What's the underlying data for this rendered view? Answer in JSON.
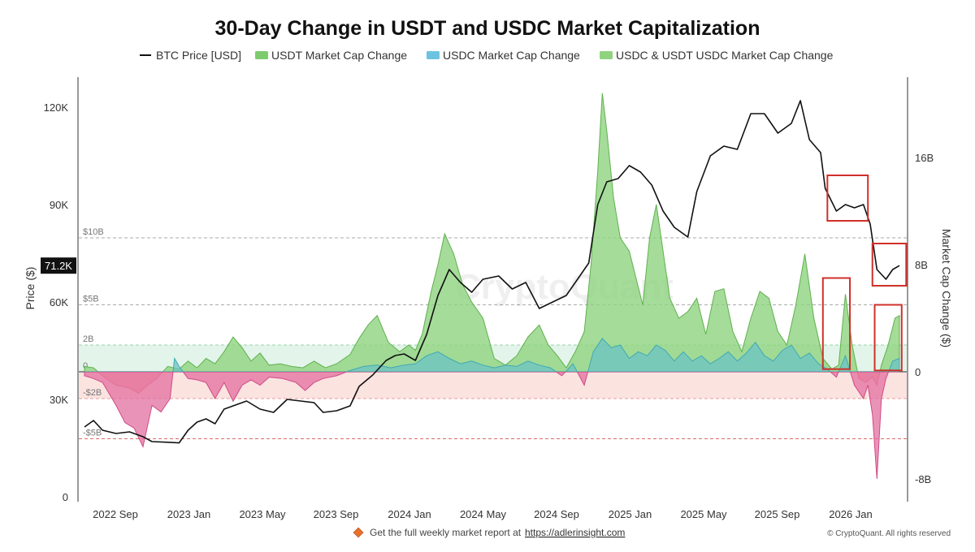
{
  "chart_data": {
    "type": "area",
    "title": "30-Day Change in USDT and USDC Market Capitalization",
    "legend": [
      {
        "label": "BTC Price [USD]",
        "color": "#111111",
        "kind": "line"
      },
      {
        "label": "USDT Market Cap Change",
        "color": "#7ecb6e",
        "kind": "area"
      },
      {
        "label": "USDC Market Cap Change",
        "color": "#6cc3e0",
        "kind": "area"
      },
      {
        "label": "USDC & USDT USDC Market Cap Change",
        "color": "#8fd37f",
        "kind": "area"
      }
    ],
    "x_ticks": [
      "2022 Sep",
      "2023 Jan",
      "2023 May",
      "2023 Sep",
      "2024 Jan",
      "2024 May",
      "2024 Sep",
      "2025 Jan",
      "2025 May",
      "2025 Sep",
      "2026 Jan"
    ],
    "x_range": [
      2022.58,
      2026.2
    ],
    "left_axis": {
      "label": "Price ($)",
      "range": [
        0,
        130000
      ],
      "ticks": [
        "0",
        "30K",
        "60K",
        "90K",
        "120K"
      ],
      "tick_values": [
        0,
        30000,
        60000,
        90000,
        120000
      ]
    },
    "right_axis": {
      "label": "Market Cap Change ($)",
      "range": [
        -9.5,
        21.5
      ],
      "ticks": [
        "-8B",
        "0",
        "8B",
        "16B"
      ],
      "tick_values": [
        -8,
        0,
        8,
        16
      ]
    },
    "current_price_label": "71.2K",
    "current_price_value": 71200,
    "reference_lines": [
      {
        "label": "$10B",
        "value": 10,
        "color": "#aaaaaa"
      },
      {
        "label": "$5B",
        "value": 5,
        "color": "#aaaaaa"
      },
      {
        "label": "2B",
        "value": 2,
        "color": "#9ad3a8"
      },
      {
        "label": "0",
        "value": 0,
        "color": "#555555"
      },
      {
        "label": "-$2B",
        "value": -2,
        "color": "#e89b9b"
      },
      {
        "label": "-$5B",
        "value": -5,
        "color": "#d96a6a"
      }
    ],
    "bands": [
      {
        "from": 0,
        "to": 2,
        "color": "#d9f2e3"
      },
      {
        "from": -2,
        "to": 0,
        "color": "#f9d9d6"
      }
    ],
    "btc_price": [
      [
        2022.58,
        21500
      ],
      [
        2022.62,
        23500
      ],
      [
        2022.66,
        20500
      ],
      [
        2022.72,
        19500
      ],
      [
        2022.78,
        20000
      ],
      [
        2022.84,
        18500
      ],
      [
        2022.88,
        17000
      ],
      [
        2022.95,
        16800
      ],
      [
        2023.0,
        16600
      ],
      [
        2023.04,
        20500
      ],
      [
        2023.08,
        23000
      ],
      [
        2023.12,
        24000
      ],
      [
        2023.16,
        22500
      ],
      [
        2023.2,
        27000
      ],
      [
        2023.26,
        28500
      ],
      [
        2023.3,
        29500
      ],
      [
        2023.36,
        27000
      ],
      [
        2023.42,
        26000
      ],
      [
        2023.48,
        30000
      ],
      [
        2023.54,
        29500
      ],
      [
        2023.6,
        29000
      ],
      [
        2023.64,
        26000
      ],
      [
        2023.7,
        26500
      ],
      [
        2023.76,
        28000
      ],
      [
        2023.8,
        34000
      ],
      [
        2023.86,
        37500
      ],
      [
        2023.92,
        42000
      ],
      [
        2023.96,
        43500
      ],
      [
        2024.0,
        44000
      ],
      [
        2024.05,
        42000
      ],
      [
        2024.1,
        50000
      ],
      [
        2024.15,
        62000
      ],
      [
        2024.2,
        70000
      ],
      [
        2024.25,
        66000
      ],
      [
        2024.3,
        63000
      ],
      [
        2024.35,
        67000
      ],
      [
        2024.42,
        68000
      ],
      [
        2024.48,
        64000
      ],
      [
        2024.54,
        66000
      ],
      [
        2024.6,
        58000
      ],
      [
        2024.66,
        60000
      ],
      [
        2024.72,
        62000
      ],
      [
        2024.78,
        68000
      ],
      [
        2024.82,
        72000
      ],
      [
        2024.86,
        90000
      ],
      [
        2024.9,
        97000
      ],
      [
        2024.95,
        98000
      ],
      [
        2025.0,
        102000
      ],
      [
        2025.05,
        100000
      ],
      [
        2025.1,
        96000
      ],
      [
        2025.15,
        88000
      ],
      [
        2025.2,
        83000
      ],
      [
        2025.26,
        80000
      ],
      [
        2025.3,
        94000
      ],
      [
        2025.36,
        105000
      ],
      [
        2025.42,
        108000
      ],
      [
        2025.48,
        107000
      ],
      [
        2025.54,
        118000
      ],
      [
        2025.6,
        118000
      ],
      [
        2025.66,
        112000
      ],
      [
        2025.72,
        115000
      ],
      [
        2025.76,
        122000
      ],
      [
        2025.8,
        110000
      ],
      [
        2025.85,
        106000
      ],
      [
        2025.87,
        95000
      ],
      [
        2025.92,
        88000
      ],
      [
        2025.96,
        90000
      ],
      [
        2026.0,
        89000
      ],
      [
        2026.04,
        90000
      ],
      [
        2026.07,
        84000
      ],
      [
        2026.1,
        70000
      ],
      [
        2026.14,
        67000
      ],
      [
        2026.17,
        70000
      ],
      [
        2026.2,
        71200
      ]
    ],
    "usdt_change": [
      [
        2022.58,
        0.4
      ],
      [
        2022.62,
        0.3
      ],
      [
        2022.66,
        -0.3
      ],
      [
        2022.72,
        -1.0
      ],
      [
        2022.78,
        -1.2
      ],
      [
        2022.82,
        -1.6
      ],
      [
        2022.86,
        -1.0
      ],
      [
        2022.9,
        -0.5
      ],
      [
        2022.95,
        0.4
      ],
      [
        2023.0,
        0.2
      ],
      [
        2023.04,
        0.8
      ],
      [
        2023.08,
        0.3
      ],
      [
        2023.12,
        1.0
      ],
      [
        2023.16,
        0.6
      ],
      [
        2023.2,
        1.5
      ],
      [
        2023.24,
        2.6
      ],
      [
        2023.28,
        1.8
      ],
      [
        2023.32,
        0.8
      ],
      [
        2023.36,
        1.4
      ],
      [
        2023.4,
        0.5
      ],
      [
        2023.45,
        0.6
      ],
      [
        2023.5,
        0.4
      ],
      [
        2023.55,
        0.3
      ],
      [
        2023.6,
        0.8
      ],
      [
        2023.65,
        0.3
      ],
      [
        2023.7,
        0.6
      ],
      [
        2023.76,
        1.3
      ],
      [
        2023.8,
        2.5
      ],
      [
        2023.84,
        3.5
      ],
      [
        2023.88,
        4.2
      ],
      [
        2023.93,
        2.2
      ],
      [
        2023.98,
        1.5
      ],
      [
        2024.02,
        2.0
      ],
      [
        2024.05,
        1.6
      ],
      [
        2024.08,
        2.8
      ],
      [
        2024.12,
        6.0
      ],
      [
        2024.15,
        8.0
      ],
      [
        2024.18,
        10.3
      ],
      [
        2024.22,
        8.8
      ],
      [
        2024.26,
        6.5
      ],
      [
        2024.3,
        5.2
      ],
      [
        2024.35,
        4.0
      ],
      [
        2024.4,
        1.0
      ],
      [
        2024.45,
        0.5
      ],
      [
        2024.5,
        1.2
      ],
      [
        2024.55,
        2.6
      ],
      [
        2024.6,
        3.5
      ],
      [
        2024.64,
        2.0
      ],
      [
        2024.68,
        1.2
      ],
      [
        2024.72,
        0.3
      ],
      [
        2024.76,
        1.5
      ],
      [
        2024.8,
        3.0
      ],
      [
        2024.83,
        8.0
      ],
      [
        2024.86,
        15.0
      ],
      [
        2024.88,
        20.8
      ],
      [
        2024.9,
        18.0
      ],
      [
        2024.93,
        13.0
      ],
      [
        2024.96,
        10.0
      ],
      [
        2025.0,
        9.0
      ],
      [
        2025.03,
        7.0
      ],
      [
        2025.06,
        5.0
      ],
      [
        2025.09,
        10.0
      ],
      [
        2025.12,
        12.5
      ],
      [
        2025.15,
        9.0
      ],
      [
        2025.18,
        5.5
      ],
      [
        2025.22,
        4.0
      ],
      [
        2025.26,
        4.5
      ],
      [
        2025.3,
        5.5
      ],
      [
        2025.34,
        2.8
      ],
      [
        2025.38,
        6.0
      ],
      [
        2025.42,
        6.2
      ],
      [
        2025.46,
        3.0
      ],
      [
        2025.5,
        1.5
      ],
      [
        2025.54,
        4.0
      ],
      [
        2025.58,
        6.0
      ],
      [
        2025.62,
        5.5
      ],
      [
        2025.66,
        3.0
      ],
      [
        2025.7,
        2.0
      ],
      [
        2025.74,
        5.0
      ],
      [
        2025.78,
        8.8
      ],
      [
        2025.82,
        4.0
      ],
      [
        2025.86,
        1.0
      ],
      [
        2025.9,
        0.2
      ],
      [
        2025.93,
        0.5
      ],
      [
        2025.96,
        5.8
      ],
      [
        2025.99,
        2.0
      ],
      [
        2026.02,
        -0.5
      ],
      [
        2026.05,
        -0.8
      ],
      [
        2026.08,
        -0.4
      ],
      [
        2026.1,
        -1.0
      ],
      [
        2026.12,
        0.5
      ],
      [
        2026.15,
        2.0
      ],
      [
        2026.18,
        4.0
      ],
      [
        2026.2,
        4.2
      ]
    ],
    "usdc_change": [
      [
        2022.58,
        -0.3
      ],
      [
        2022.62,
        -0.5
      ],
      [
        2022.66,
        -0.8
      ],
      [
        2022.72,
        -2.5
      ],
      [
        2022.76,
        -3.8
      ],
      [
        2022.8,
        -4.2
      ],
      [
        2022.84,
        -5.6
      ],
      [
        2022.88,
        -2.5
      ],
      [
        2022.92,
        -3.0
      ],
      [
        2022.96,
        -2.0
      ],
      [
        2022.98,
        1.0
      ],
      [
        2023.0,
        0.4
      ],
      [
        2023.04,
        -0.5
      ],
      [
        2023.08,
        -0.6
      ],
      [
        2023.12,
        -0.8
      ],
      [
        2023.16,
        -2.0
      ],
      [
        2023.2,
        -0.8
      ],
      [
        2023.24,
        -2.2
      ],
      [
        2023.28,
        -1.0
      ],
      [
        2023.32,
        -0.6
      ],
      [
        2023.36,
        -1.0
      ],
      [
        2023.4,
        -0.4
      ],
      [
        2023.46,
        -0.5
      ],
      [
        2023.52,
        -0.8
      ],
      [
        2023.56,
        -1.4
      ],
      [
        2023.6,
        -0.8
      ],
      [
        2023.64,
        -0.5
      ],
      [
        2023.7,
        -0.3
      ],
      [
        2023.76,
        0.1
      ],
      [
        2023.82,
        0.4
      ],
      [
        2023.88,
        0.5
      ],
      [
        2023.94,
        0.3
      ],
      [
        2024.0,
        0.5
      ],
      [
        2024.05,
        0.6
      ],
      [
        2024.1,
        1.2
      ],
      [
        2024.15,
        1.5
      ],
      [
        2024.2,
        1.0
      ],
      [
        2024.25,
        0.6
      ],
      [
        2024.3,
        0.8
      ],
      [
        2024.35,
        0.5
      ],
      [
        2024.4,
        0.3
      ],
      [
        2024.45,
        0.5
      ],
      [
        2024.5,
        0.4
      ],
      [
        2024.55,
        0.8
      ],
      [
        2024.6,
        0.5
      ],
      [
        2024.65,
        0.3
      ],
      [
        2024.7,
        -0.3
      ],
      [
        2024.75,
        0.6
      ],
      [
        2024.8,
        -1.0
      ],
      [
        2024.84,
        1.5
      ],
      [
        2024.88,
        2.5
      ],
      [
        2024.92,
        1.8
      ],
      [
        2024.96,
        2.0
      ],
      [
        2025.0,
        1.0
      ],
      [
        2025.04,
        1.5
      ],
      [
        2025.08,
        1.2
      ],
      [
        2025.12,
        2.0
      ],
      [
        2025.16,
        1.6
      ],
      [
        2025.2,
        0.8
      ],
      [
        2025.24,
        1.5
      ],
      [
        2025.28,
        0.8
      ],
      [
        2025.32,
        1.2
      ],
      [
        2025.36,
        0.6
      ],
      [
        2025.4,
        1.0
      ],
      [
        2025.44,
        1.5
      ],
      [
        2025.48,
        0.8
      ],
      [
        2025.52,
        1.4
      ],
      [
        2025.56,
        2.2
      ],
      [
        2025.6,
        1.2
      ],
      [
        2025.64,
        0.8
      ],
      [
        2025.68,
        1.6
      ],
      [
        2025.72,
        2.0
      ],
      [
        2025.76,
        1.0
      ],
      [
        2025.8,
        1.4
      ],
      [
        2025.84,
        0.6
      ],
      [
        2025.88,
        0.2
      ],
      [
        2025.92,
        -0.4
      ],
      [
        2025.96,
        1.2
      ],
      [
        2026.0,
        -1.0
      ],
      [
        2026.04,
        -2.0
      ],
      [
        2026.06,
        -1.0
      ],
      [
        2026.08,
        -3.2
      ],
      [
        2026.1,
        -8.0
      ],
      [
        2026.12,
        -2.0
      ],
      [
        2026.14,
        -0.5
      ],
      [
        2026.17,
        0.8
      ],
      [
        2026.2,
        1.0
      ]
    ],
    "highlight_boxes": [
      {
        "x_from": 2025.88,
        "x_to": 2026.06,
        "axis": "left",
        "y_from": 85000,
        "y_to": 99000
      },
      {
        "x_from": 2026.08,
        "x_to": 2026.23,
        "axis": "left",
        "y_from": 65000,
        "y_to": 78000
      },
      {
        "x_from": 2025.86,
        "x_to": 2025.98,
        "axis": "right",
        "y_from": 0.2,
        "y_to": 7.0
      },
      {
        "x_from": 2026.09,
        "x_to": 2026.21,
        "axis": "right",
        "y_from": 0.1,
        "y_to": 5.0
      }
    ],
    "watermark": "CryptoQuant"
  },
  "footer": {
    "report_text": "Get the full weekly market report at",
    "report_link": "https://adlerinsight.com",
    "copyright": "© CryptoQuant. All rights reserved"
  }
}
